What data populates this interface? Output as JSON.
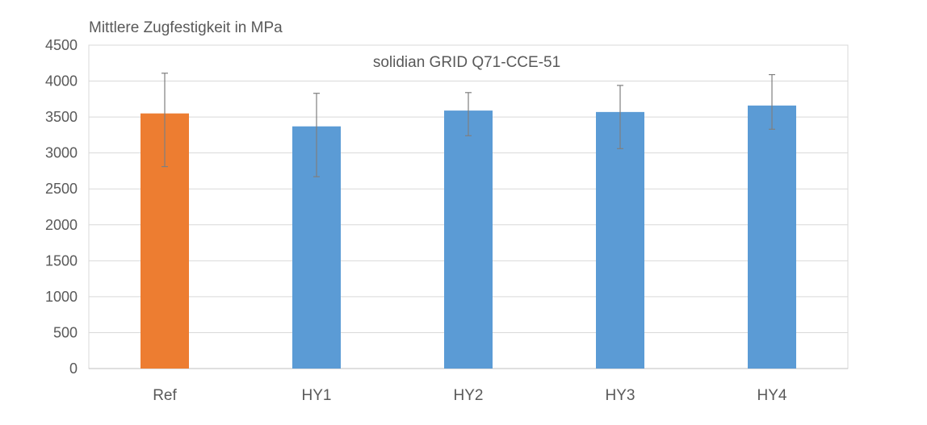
{
  "chart_data": {
    "type": "bar",
    "ylabel": "Mittlere Zugfestigkeit in MPa",
    "subtitle": "solidian GRID Q71-CCE-51",
    "categories": [
      "Ref",
      "HY1",
      "HY2",
      "HY3",
      "HY4"
    ],
    "values": [
      3550,
      3370,
      3590,
      3570,
      3660
    ],
    "error_high": [
      4110,
      3830,
      3840,
      3940,
      4090
    ],
    "error_low": [
      2810,
      2670,
      3240,
      3060,
      3330
    ],
    "bar_colors": [
      "#ED7D31",
      "#5B9BD5",
      "#5B9BD5",
      "#5B9BD5",
      "#5B9BD5"
    ],
    "ylim": [
      0,
      4500
    ],
    "yticks": [
      "0",
      "500",
      "1000",
      "1500",
      "2000",
      "2500",
      "3000",
      "3500",
      "4000",
      "4500"
    ],
    "grid": true,
    "legend": "none"
  }
}
